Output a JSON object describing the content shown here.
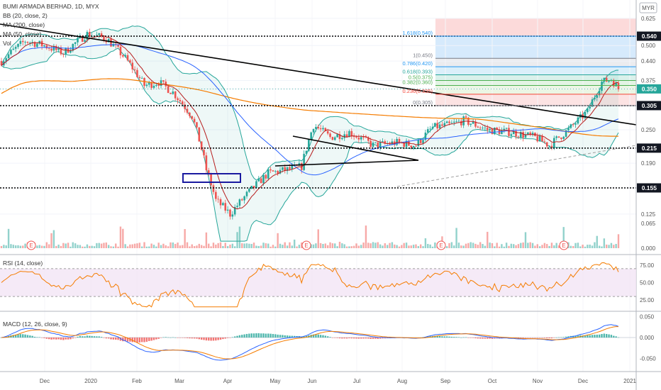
{
  "chart_data": {
    "type": "candlestick",
    "symbol_title": "BUMI ARMADA BERHAD, 1D, MYX",
    "currency": "MYR",
    "legend": [
      "BB (20, close, 2)",
      "MA (200, close)",
      "MA (50, close)",
      "Vol"
    ],
    "price_axis": {
      "ticks": [
        0.125,
        0.155,
        0.19,
        0.215,
        0.25,
        0.305,
        0.35,
        0.375,
        0.44,
        0.5,
        0.54,
        0.625
      ],
      "labels": [
        "0.125",
        "0.155",
        "0.190",
        "0.215",
        "0.250",
        "0.305",
        "0.350",
        "0.375",
        "0.440",
        "0.500",
        "0.540",
        "0.625"
      ],
      "scale": "log"
    },
    "volume_axis": {
      "ticks": [
        0.0,
        0.065
      ],
      "labels": [
        "0.000",
        "0.065"
      ]
    },
    "time_axis": [
      "Dec",
      "2020",
      "Feb",
      "Mar",
      "Apr",
      "May",
      "Jun",
      "Jul",
      "Aug",
      "Sep",
      "Oct",
      "Nov",
      "Dec",
      "2021"
    ],
    "horizontal_levels": [
      {
        "value": 0.54,
        "label": "0.540"
      },
      {
        "value": 0.305,
        "label": "0.305"
      },
      {
        "value": 0.215,
        "label": "0.215"
      },
      {
        "value": 0.155,
        "label": "0.155"
      }
    ],
    "current_price": {
      "value": 0.35,
      "label": "0.350"
    },
    "fibonacci": [
      {
        "ratio": "1.618",
        "price": 0.54,
        "label": "1.618(0.540)",
        "color": "#2196f3"
      },
      {
        "ratio": "1",
        "price": 0.45,
        "label": "1(0.450)",
        "color": "#787b86"
      },
      {
        "ratio": "0.786",
        "price": 0.42,
        "label": "0.786(0.420)",
        "color": "#2196f3"
      },
      {
        "ratio": "0.618",
        "price": 0.393,
        "label": "0.618(0.393)",
        "color": "#26a69a"
      },
      {
        "ratio": "0.5",
        "price": 0.375,
        "label": "0.5(0.375)",
        "color": "#4caf50"
      },
      {
        "ratio": "0.382",
        "price": 0.36,
        "label": "0.382(0.360)",
        "color": "#4caf50"
      },
      {
        "ratio": "0.236",
        "price": 0.335,
        "label": "0.236(0.335)",
        "color": "#f44336"
      },
      {
        "ratio": "0",
        "price": 0.305,
        "label": "0(0.305)",
        "color": "#787b86"
      }
    ],
    "earnings_markers": [
      "E",
      "E",
      "E",
      "E"
    ],
    "rsi": {
      "legend": "RSI (14, close)",
      "ticks": [
        25.0,
        50.0,
        75.0
      ],
      "labels": [
        "25.00",
        "50.00",
        "75.00"
      ],
      "band": [
        30,
        70
      ]
    },
    "macd": {
      "legend": "MACD (12, 26, close, 9)",
      "ticks": [
        0.05,
        0.0,
        -0.05
      ],
      "labels": [
        "0.050",
        "0.000",
        "-0.050"
      ]
    },
    "colors": {
      "up": "#26a69a",
      "down": "#ef5350",
      "bb": "#26a69a",
      "ma200": "#f57c00",
      "ma50": "#2962ff",
      "ma_short": "#b71c1c",
      "rsi": "#f57c00",
      "macd": "#2962ff",
      "signal": "#f57c00",
      "tag": "#131722",
      "price_tag": "#26a69a"
    }
  }
}
